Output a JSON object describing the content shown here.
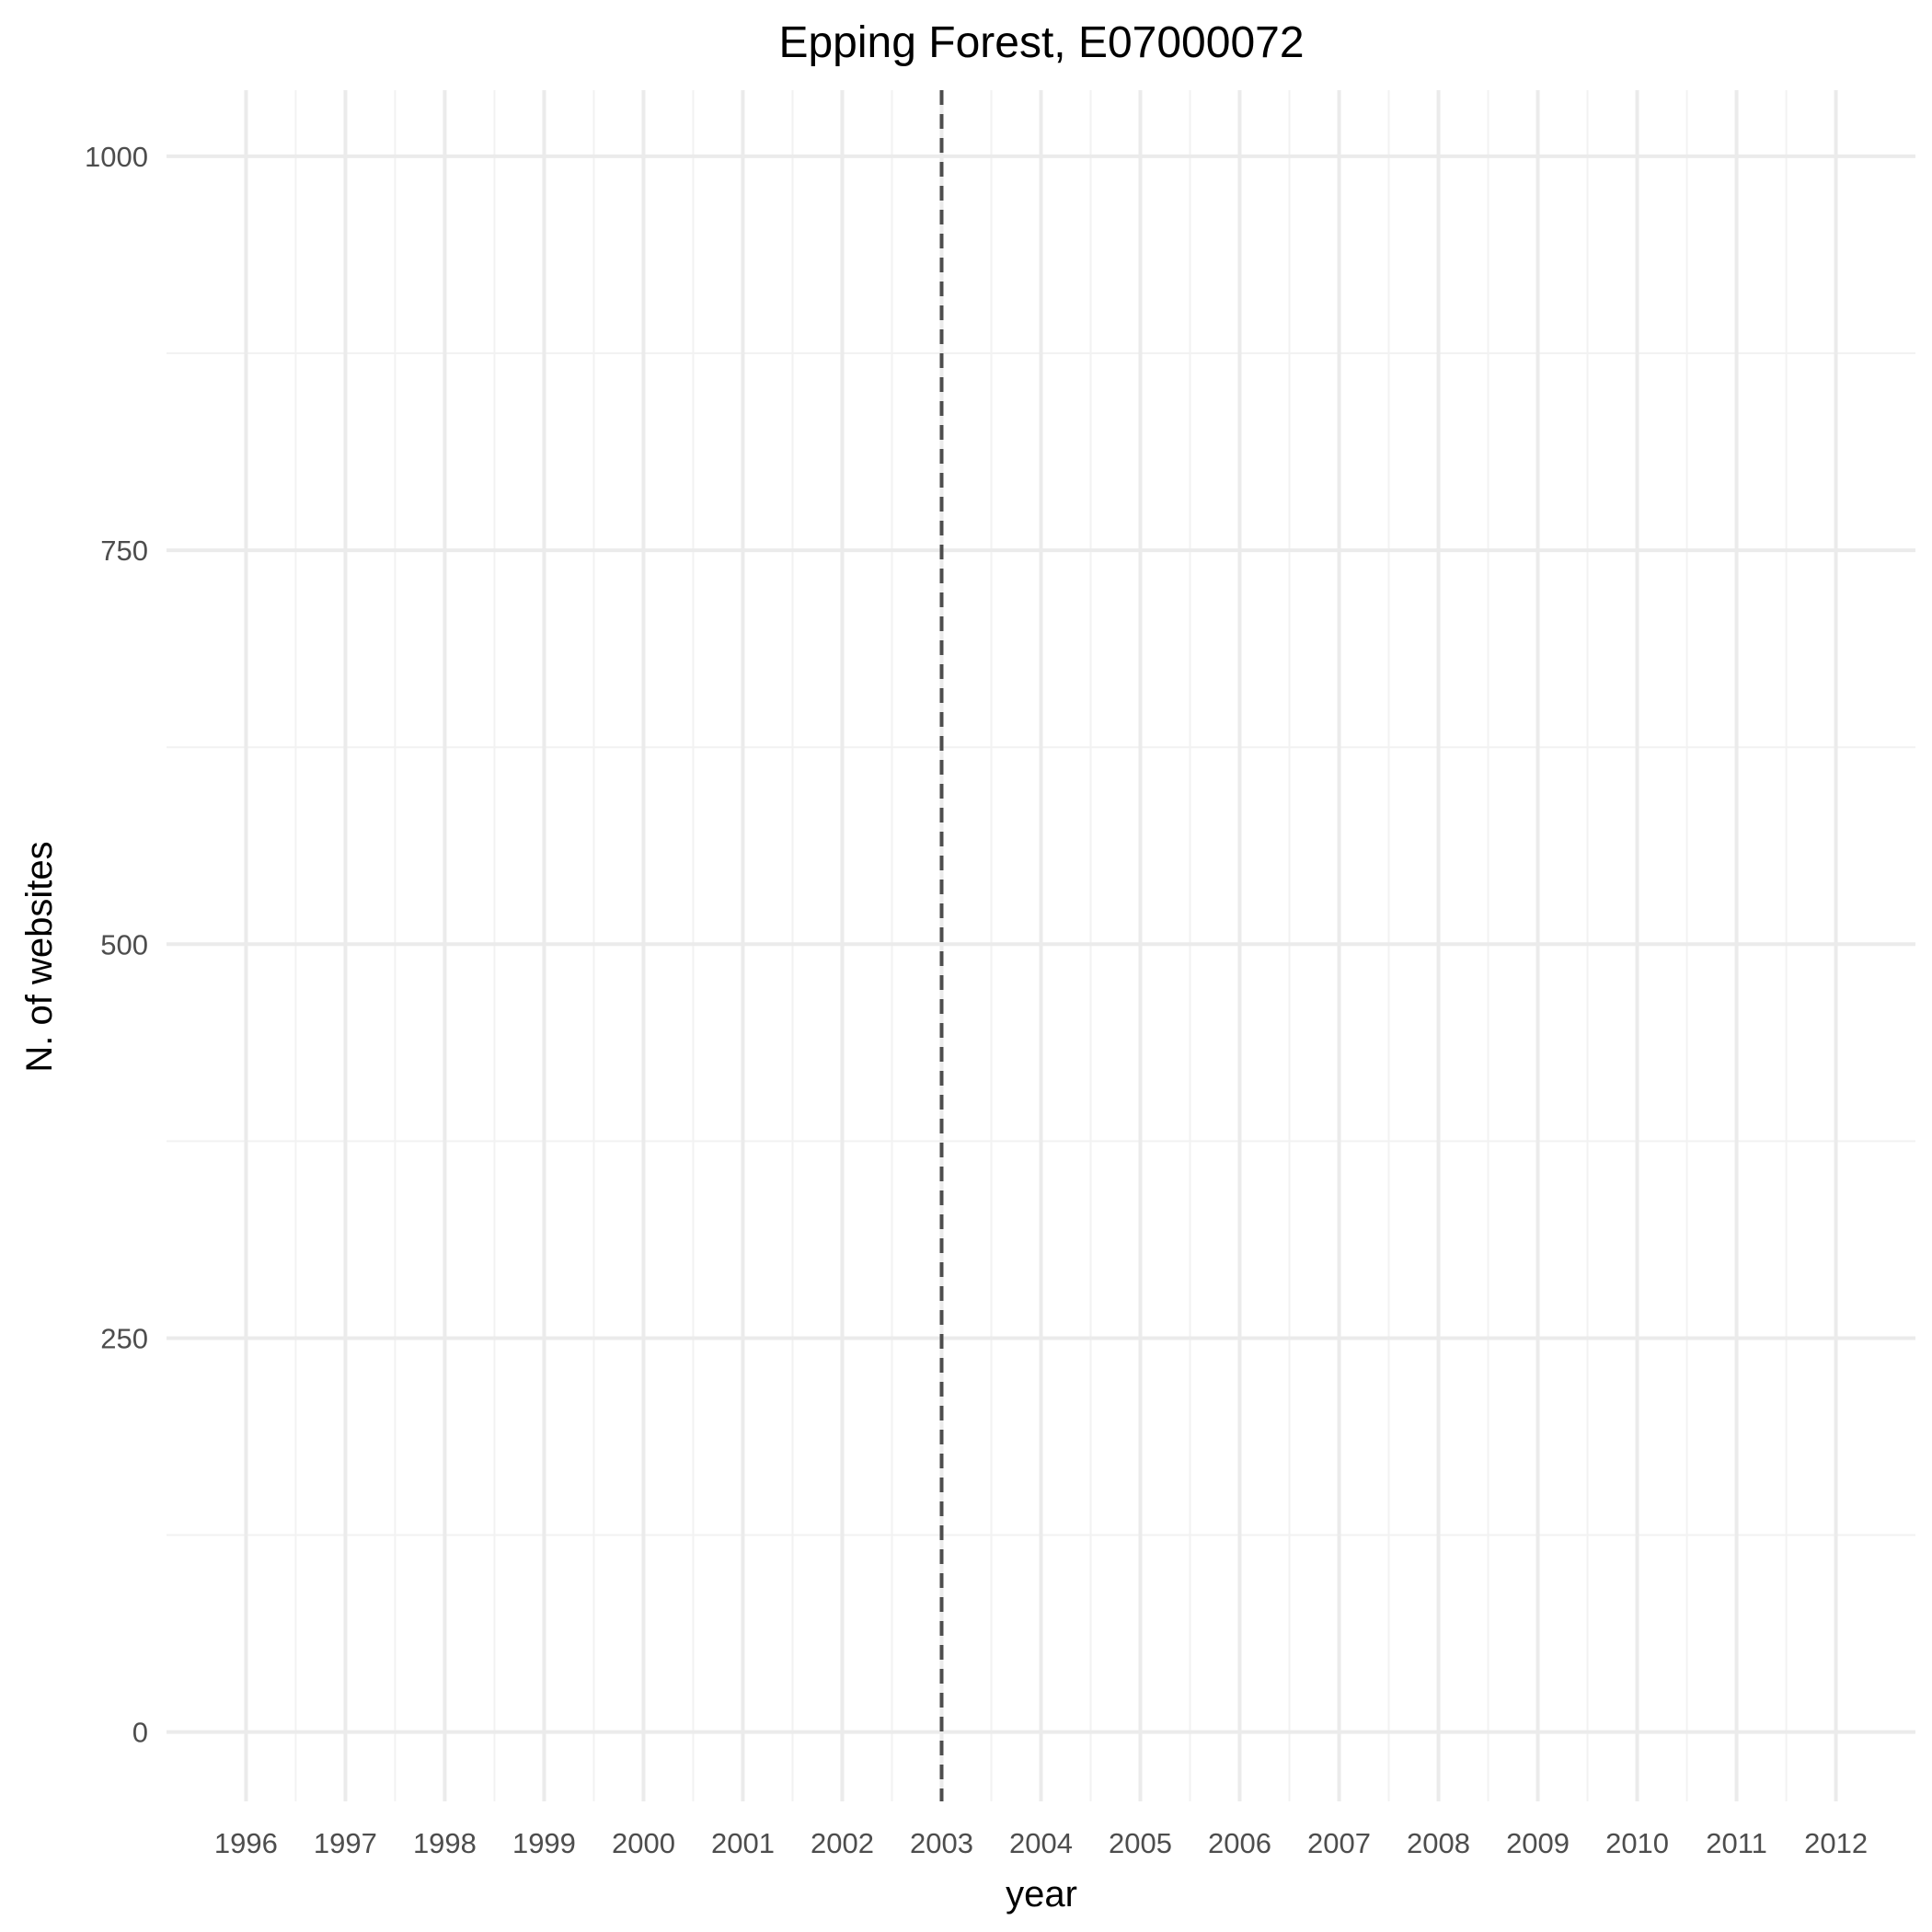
{
  "chart_data": {
    "type": "line",
    "title": "Epping Forest, E07000072",
    "xlabel": "year",
    "ylabel": "N. of websites",
    "x_ticks": [
      "1996",
      "1997",
      "1998",
      "1999",
      "2000",
      "2001",
      "2002",
      "2003",
      "2004",
      "2005",
      "2006",
      "2007",
      "2008",
      "2009",
      "2010",
      "2011",
      "2012"
    ],
    "y_ticks": [
      "0",
      "250",
      "500",
      "750",
      "1000"
    ],
    "xlim": [
      1995.2,
      2012.8
    ],
    "ylim": [
      -44,
      1042
    ],
    "grid": true,
    "series": [],
    "reference_lines": [
      {
        "orientation": "vertical",
        "x": 2003,
        "style": "dashed",
        "color": "#4d4d4d"
      }
    ]
  }
}
